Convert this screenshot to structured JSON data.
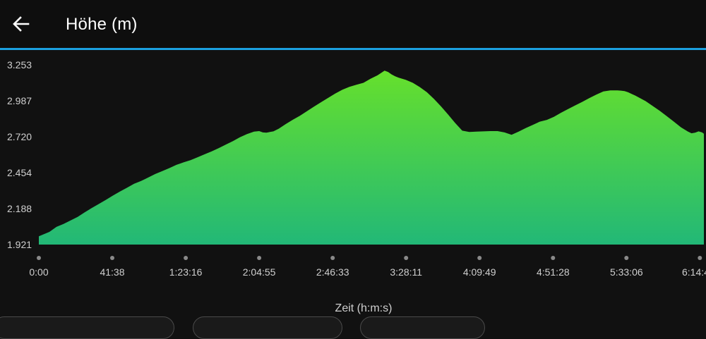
{
  "header": {
    "title": "Höhe (m)",
    "back_icon": "arrow-left-icon"
  },
  "colors": {
    "background": "#111111",
    "accent": "#1ba0e0",
    "fill_top": "#66e02c",
    "fill_bottom": "#22b877",
    "tick_dot": "#8a8a8a",
    "label": "#cfcfcf"
  },
  "chart_data": {
    "type": "area",
    "xlabel": "Zeit (h:m:s)",
    "ylabel": "",
    "ylim": [
      1921,
      3253
    ],
    "y_ticks": [
      "3.253",
      "2.987",
      "2.720",
      "2.454",
      "2.188",
      "1.921"
    ],
    "y_tick_values": [
      3253,
      2987,
      2720,
      2454,
      2188,
      1921
    ],
    "x_ticks": [
      "0:00",
      "41:38",
      "1:23:16",
      "2:04:55",
      "2:46:33",
      "3:28:11",
      "4:09:49",
      "4:51:28",
      "5:33:06",
      "6:14:4"
    ],
    "x_tick_values_min": [
      0,
      41.63,
      83.27,
      124.92,
      166.55,
      208.18,
      249.82,
      291.47,
      333.1,
      374.73
    ],
    "xlim_min": [
      0,
      377
    ],
    "series": [
      {
        "x_min": [
          0,
          6,
          10,
          14,
          18,
          22,
          26,
          30,
          34,
          38,
          42,
          46,
          50,
          54,
          58,
          62,
          66,
          70,
          74,
          78,
          82,
          86,
          90,
          94,
          98,
          102,
          106,
          110,
          114,
          118,
          122,
          124.9,
          127,
          129,
          131,
          133,
          136,
          140,
          144,
          148,
          152,
          156,
          160,
          164,
          168,
          172,
          176,
          180,
          184,
          188,
          192,
          196,
          198,
          200,
          202,
          204,
          206,
          208,
          212,
          216,
          220,
          224,
          228,
          232,
          236,
          240,
          244,
          248,
          252,
          256,
          260,
          264,
          268,
          272,
          276,
          280,
          284,
          288,
          292,
          296,
          300,
          304,
          308,
          312,
          316,
          320,
          324,
          328,
          330,
          332,
          334,
          336,
          338,
          340,
          344,
          348,
          352,
          356,
          360,
          364,
          368,
          370,
          372,
          374,
          376,
          377
        ],
        "y": [
          1982,
          2015,
          2052,
          2074,
          2100,
          2126,
          2160,
          2192,
          2222,
          2252,
          2284,
          2314,
          2342,
          2372,
          2392,
          2418,
          2444,
          2466,
          2488,
          2512,
          2530,
          2546,
          2568,
          2590,
          2612,
          2636,
          2662,
          2688,
          2716,
          2740,
          2758,
          2762,
          2752,
          2750,
          2755,
          2760,
          2780,
          2814,
          2846,
          2876,
          2910,
          2944,
          2976,
          3008,
          3040,
          3068,
          3090,
          3105,
          3120,
          3150,
          3175,
          3210,
          3200,
          3182,
          3168,
          3158,
          3150,
          3142,
          3120,
          3088,
          3050,
          3000,
          2945,
          2885,
          2822,
          2765,
          2755,
          2758,
          2760,
          2762,
          2762,
          2752,
          2735,
          2758,
          2784,
          2808,
          2832,
          2845,
          2868,
          2898,
          2925,
          2952,
          2978,
          3006,
          3032,
          3056,
          3064,
          3064,
          3062,
          3058,
          3050,
          3038,
          3026,
          3012,
          2984,
          2948,
          2912,
          2872,
          2832,
          2790,
          2758,
          2746,
          2750,
          2760,
          2752,
          2742
        ]
      }
    ]
  },
  "filters": {
    "visible_count": 3
  }
}
